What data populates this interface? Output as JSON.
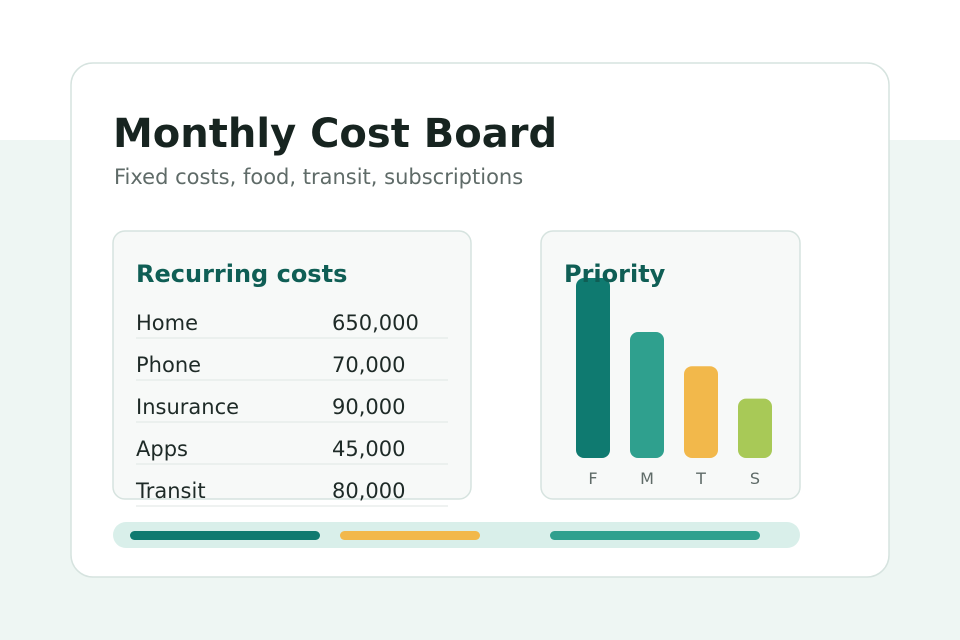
{
  "header": {
    "title": "Monthly Cost Board",
    "subtitle": "Fixed costs, food, transit, subscriptions"
  },
  "table": {
    "title": "Recurring costs",
    "rows": [
      [
        "Home",
        "650,000"
      ],
      [
        "Phone",
        "70,000"
      ],
      [
        "Insurance",
        "90,000"
      ],
      [
        "Apps",
        "45,000"
      ],
      [
        "Transit",
        "80,000"
      ]
    ]
  },
  "chart_data": {
    "type": "bar",
    "title": "Priority",
    "categories": [
      "F",
      "M",
      "T",
      "S"
    ],
    "values": [
      100,
      70,
      51,
      33
    ],
    "colors": [
      "#0f7a70",
      "#2fa08e",
      "#f2b84b",
      "#a8c957"
    ],
    "ylim": [
      0,
      100
    ]
  }
}
